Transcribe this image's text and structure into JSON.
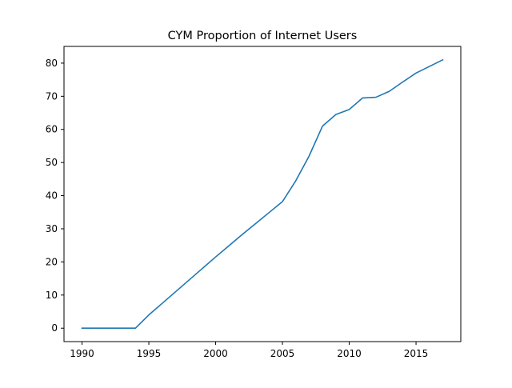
{
  "chart_data": {
    "type": "line",
    "title": "CYM Proportion of Internet Users",
    "xlabel": "",
    "ylabel": "",
    "xlim": [
      1988.65,
      2018.35
    ],
    "ylim": [
      -4.05,
      85.05
    ],
    "x_ticks": [
      1990,
      1995,
      2000,
      2005,
      2010,
      2015
    ],
    "y_ticks": [
      0,
      10,
      20,
      30,
      40,
      50,
      60,
      70,
      80
    ],
    "grid": false,
    "legend": "none",
    "series": [
      {
        "color": "#1f77b4",
        "x": [
          1990,
          1991,
          1992,
          1993,
          1994,
          1995,
          1996,
          1997,
          1998,
          1999,
          2000,
          2001,
          2002,
          2003,
          2004,
          2005,
          2006,
          2007,
          2008,
          2009,
          2010,
          2011,
          2012,
          2013,
          2014,
          2015,
          2016,
          2017
        ],
        "y": [
          0,
          0,
          0,
          0,
          0,
          4.0,
          7.5,
          11.0,
          14.5,
          18.0,
          21.5,
          24.9,
          28.3,
          31.6,
          34.9,
          38.2,
          44.5,
          52.0,
          61.0,
          64.5,
          66.0,
          69.5,
          69.7,
          71.5,
          74.3,
          77.0,
          79.0,
          81.0
        ]
      }
    ]
  }
}
